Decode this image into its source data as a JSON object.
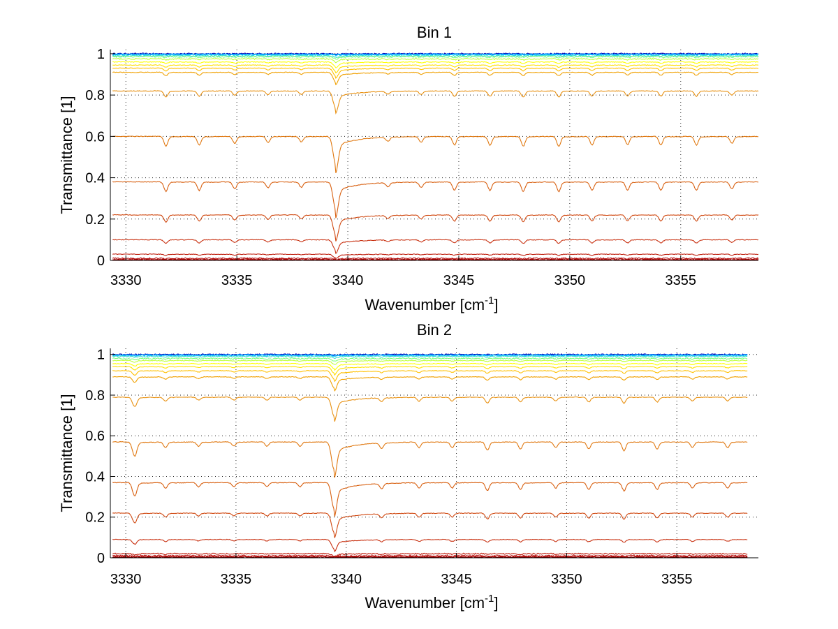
{
  "chart_data": [
    {
      "type": "line",
      "title": "Bin 1",
      "xlabel": "Wavenumber [cm",
      "xlabel_sup": "-1",
      "xlabel_end": "]",
      "ylabel": "Transmittance [1]",
      "xlim": [
        3329.3,
        3358.5
      ],
      "ylim": [
        0,
        1.02
      ],
      "xticks": [
        3330,
        3335,
        3340,
        3345,
        3350,
        3355
      ],
      "xtick_labels": [
        "3330",
        "3335",
        "3340",
        "3345",
        "3350",
        "3355"
      ],
      "yticks": [
        0,
        0.2,
        0.4,
        0.6,
        0.8,
        1
      ],
      "ytick_labels": [
        "0",
        "0.2",
        "0.4",
        "0.6",
        "0.8",
        "1"
      ],
      "grid": true,
      "line_x_end": 3358.5,
      "series_levels": [
        1.0,
        0.998,
        0.995,
        0.99,
        0.985,
        0.975,
        0.96,
        0.945,
        0.93,
        0.91,
        0.82,
        0.6,
        0.38,
        0.22,
        0.1,
        0.03,
        0.01,
        0.005,
        0.002,
        0.0
      ],
      "series_colors": [
        "#0000b4",
        "#0080ff",
        "#00c0ff",
        "#40e0d0",
        "#80ff80",
        "#c0ff40",
        "#ffff00",
        "#ffe000",
        "#ffc000",
        "#f0a000",
        "#e89010",
        "#e07810",
        "#d86010",
        "#d04810",
        "#c83010",
        "#c02010",
        "#b81010",
        "#b00808",
        "#a80000",
        "#900000"
      ],
      "absorption_lines": [
        {
          "x": 3331.8,
          "depth": 0.35,
          "width": 0.12
        },
        {
          "x": 3333.3,
          "depth": 0.3,
          "width": 0.12
        },
        {
          "x": 3334.9,
          "depth": 0.25,
          "width": 0.12
        },
        {
          "x": 3336.4,
          "depth": 0.22,
          "width": 0.12
        },
        {
          "x": 3337.9,
          "depth": 0.2,
          "width": 0.12
        },
        {
          "x": 3339.45,
          "depth": 1.0,
          "width": 0.16
        },
        {
          "x": 3341.8,
          "depth": 0.15,
          "width": 0.12
        },
        {
          "x": 3343.3,
          "depth": 0.2,
          "width": 0.12
        },
        {
          "x": 3344.8,
          "depth": 0.3,
          "width": 0.12
        },
        {
          "x": 3346.4,
          "depth": 0.3,
          "width": 0.12
        },
        {
          "x": 3347.9,
          "depth": 0.35,
          "width": 0.12
        },
        {
          "x": 3349.5,
          "depth": 0.35,
          "width": 0.12
        },
        {
          "x": 3351.0,
          "depth": 0.3,
          "width": 0.12
        },
        {
          "x": 3352.6,
          "depth": 0.3,
          "width": 0.12
        },
        {
          "x": 3354.1,
          "depth": 0.3,
          "width": 0.12
        },
        {
          "x": 3355.7,
          "depth": 0.3,
          "width": 0.12
        },
        {
          "x": 3357.3,
          "depth": 0.25,
          "width": 0.12
        }
      ]
    },
    {
      "type": "line",
      "title": "Bin 2",
      "xlabel": "Wavenumber [cm",
      "xlabel_sup": "-1",
      "xlabel_end": "]",
      "ylabel": "Transmittance [1]",
      "xlim": [
        3329.3,
        3358.7
      ],
      "ylim": [
        0,
        1.03
      ],
      "xticks": [
        3330,
        3335,
        3340,
        3345,
        3350,
        3355
      ],
      "xtick_labels": [
        "3330",
        "3335",
        "3340",
        "3345",
        "3350",
        "3355"
      ],
      "yticks": [
        0,
        0.2,
        0.4,
        0.6,
        0.8,
        1
      ],
      "ytick_labels": [
        "0",
        "0.2",
        "0.4",
        "0.6",
        "0.8",
        "1"
      ],
      "grid": true,
      "line_x_end": 3358.2,
      "series_levels": [
        1.0,
        0.998,
        0.995,
        0.99,
        0.98,
        0.97,
        0.955,
        0.94,
        0.92,
        0.89,
        0.79,
        0.57,
        0.37,
        0.22,
        0.09,
        0.02,
        0.01,
        0.005,
        0.002,
        0.0
      ],
      "series_colors": [
        "#0000b4",
        "#0080ff",
        "#00c0ff",
        "#40e0d0",
        "#80ff80",
        "#c0ff40",
        "#ffff00",
        "#ffe000",
        "#ffc000",
        "#f0a000",
        "#e89010",
        "#e07810",
        "#d86010",
        "#d04810",
        "#c83010",
        "#c02010",
        "#b81010",
        "#b00808",
        "#a80000",
        "#900000"
      ],
      "absorption_lines": [
        {
          "x": 3330.4,
          "depth": 0.5,
          "width": 0.14
        },
        {
          "x": 3331.8,
          "depth": 0.2,
          "width": 0.12
        },
        {
          "x": 3333.3,
          "depth": 0.15,
          "width": 0.12
        },
        {
          "x": 3334.9,
          "depth": 0.15,
          "width": 0.12
        },
        {
          "x": 3336.4,
          "depth": 0.15,
          "width": 0.12
        },
        {
          "x": 3337.9,
          "depth": 0.15,
          "width": 0.12
        },
        {
          "x": 3339.45,
          "depth": 1.0,
          "width": 0.16
        },
        {
          "x": 3341.6,
          "depth": 0.2,
          "width": 0.12
        },
        {
          "x": 3343.3,
          "depth": 0.2,
          "width": 0.12
        },
        {
          "x": 3344.8,
          "depth": 0.2,
          "width": 0.12
        },
        {
          "x": 3346.4,
          "depth": 0.3,
          "width": 0.12
        },
        {
          "x": 3347.9,
          "depth": 0.25,
          "width": 0.12
        },
        {
          "x": 3349.5,
          "depth": 0.2,
          "width": 0.12
        },
        {
          "x": 3351.0,
          "depth": 0.25,
          "width": 0.12
        },
        {
          "x": 3352.6,
          "depth": 0.3,
          "width": 0.12
        },
        {
          "x": 3354.1,
          "depth": 0.25,
          "width": 0.12
        },
        {
          "x": 3355.7,
          "depth": 0.2,
          "width": 0.12
        },
        {
          "x": 3357.3,
          "depth": 0.2,
          "width": 0.12
        }
      ]
    }
  ]
}
